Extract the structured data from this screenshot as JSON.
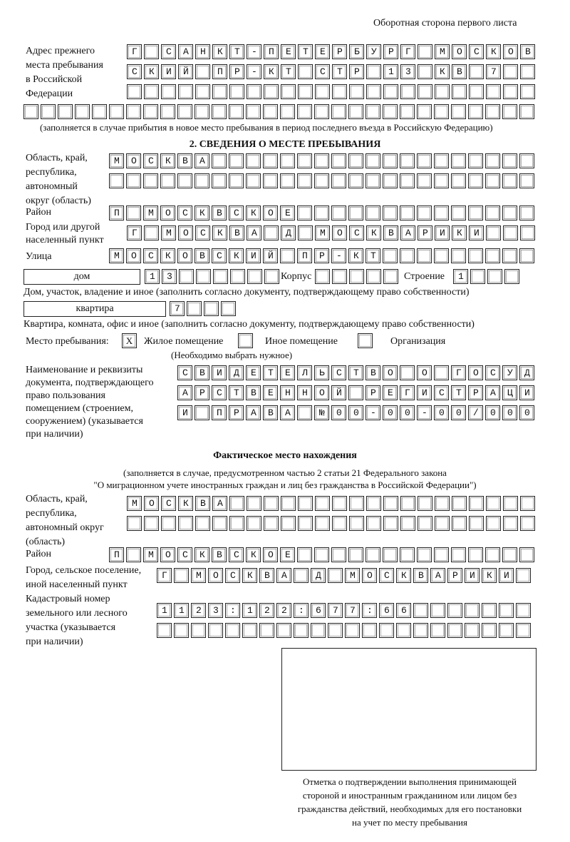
{
  "header": "Оборотная сторона первого листа",
  "prev_address": {
    "label": [
      "Адрес прежнего",
      "места пребывания",
      "в Российской",
      "Федерации"
    ],
    "rows": [
      "Г САНКТ-ПЕТЕРБУРГ МОСКОВ",
      "СКИЙ ПР-КТ СТР 13 КВ 7  ",
      "                        ",
      "                              "
    ],
    "note": "(заполняется в случае прибытия в новое место пребывания в период последнего въезда в Российскую Федерацию)"
  },
  "section2": {
    "title": "2. СВЕДЕНИЯ О МЕСТЕ ПРЕБЫВАНИЯ",
    "region_label": [
      "Область, край,",
      "республика,",
      "автономный",
      "округ (область)"
    ],
    "region_rows": [
      "МОСКВА                   ",
      "                         "
    ],
    "district_label": "Район",
    "district_row": "П МОСКВСКОЕ              ",
    "city_label": [
      "Город или другой",
      "населенный пункт"
    ],
    "city_row": "Г МОСКВА Д МОСКВАРИКИ   ",
    "street_label": "Улица",
    "street_row": "МОСКОВСКИЙ ПР-КТ         ",
    "house_type": "дом",
    "house_number": "13      ",
    "korpus_label": "Корпус",
    "korpus": "     ",
    "stroenie_label": "Строение",
    "stroenie": "1   ",
    "house_note": "Дом, участок, владение и иное (заполнить согласно документу, подтверждающему право собственности)",
    "flat_type": "квартира",
    "flat_number": "7   ",
    "flat_note": "Квартира, комната, офис и иное (заполнить согласно документу, подтверждающему право собственности)",
    "place_label": "Место пребывания:",
    "place_options": [
      {
        "label": "Жилое помещение",
        "mark": "X"
      },
      {
        "label": "Иное помещение",
        "mark": ""
      },
      {
        "label": "Организация",
        "mark": ""
      }
    ],
    "place_note": "(Необходимо выбрать нужное)",
    "doc_label": [
      "Наименование и реквизиты",
      "документа, подтверждающего",
      "право пользования",
      "помещением (строением,",
      "сооружением) (указывается",
      "при наличии)"
    ],
    "doc_rows": [
      "СВИДЕТЕЛЬСТВО О ГОСУД",
      "АРСТВЕННОЙ РЕГИСТРАЦИ",
      "И ПРАВА №00-00-00/000"
    ]
  },
  "actual": {
    "title": "Фактическое место нахождения",
    "subtitle": [
      "(заполняется в случае, предусмотренном частью 2 статьи 21 Федерального закона",
      "\"О миграционном учете иностранных граждан и лиц без гражданства в Российской Федерации\")"
    ],
    "region_label": [
      "Область, край,",
      "республика,",
      "автономный округ",
      "(область)"
    ],
    "region_rows": [
      "МОСКВА                  ",
      "                        "
    ],
    "district_label": "Район",
    "district_row": "П МОСКВСКОЕ              ",
    "city_label": [
      "Город, сельское поселение,",
      "иной населенный пункт"
    ],
    "city_row": "Г МОСКВА Д МОСКВАРИКИ ",
    "cadastre_label": [
      "Кадастровый номер",
      "земельного или лесного",
      "участка (указывается",
      "при наличии)"
    ],
    "cadastre_rows": [
      "1123:122:677:66       ",
      "                      "
    ]
  },
  "stamp_caption": [
    "Отметка о подтверждении выполнения принимающей",
    "стороной и иностранным гражданином или лицом без",
    "гражданства действий, необходимых для его постановки",
    "на учет по месту пребывания"
  ]
}
